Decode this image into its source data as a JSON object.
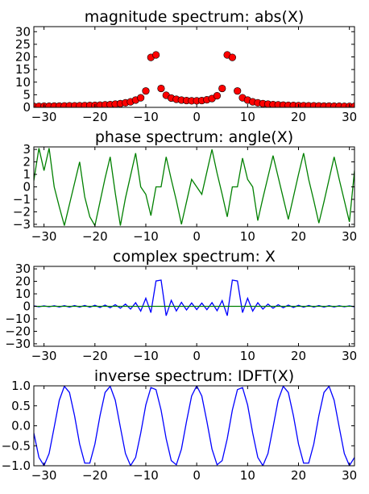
{
  "chart_data": [
    {
      "type": "scatter",
      "title": "magnitude spectrum: abs(X)",
      "xlabel": "",
      "ylabel": "",
      "xlim": [
        -32,
        31
      ],
      "ylim": [
        0,
        32
      ],
      "xticks": [
        -30,
        -20,
        -10,
        0,
        10,
        20,
        30
      ],
      "yticks": [
        0,
        5,
        10,
        15,
        20,
        25,
        30
      ],
      "marker_color": "#ff0000",
      "x": [
        -32,
        -31,
        -30,
        -29,
        -28,
        -27,
        -26,
        -25,
        -24,
        -23,
        -22,
        -21,
        -20,
        -19,
        -18,
        -17,
        -16,
        -15,
        -14,
        -13,
        -12,
        -11,
        -10,
        -9,
        -8,
        -7,
        -6,
        -5,
        -4,
        -3,
        -2,
        -1,
        0,
        1,
        2,
        3,
        4,
        5,
        6,
        7,
        8,
        9,
        10,
        11,
        12,
        13,
        14,
        15,
        16,
        17,
        18,
        19,
        20,
        21,
        22,
        23,
        24,
        25,
        26,
        27,
        28,
        29,
        30,
        31
      ],
      "y": [
        0.4,
        0.4,
        0.45,
        0.45,
        0.5,
        0.5,
        0.55,
        0.6,
        0.6,
        0.65,
        0.7,
        0.75,
        0.8,
        0.9,
        1.0,
        1.1,
        1.3,
        1.5,
        1.8,
        2.2,
        2.9,
        3.8,
        6.5,
        19.8,
        20.8,
        7.5,
        4.8,
        3.7,
        3.2,
        2.9,
        2.7,
        2.6,
        2.6,
        2.7,
        3.0,
        3.5,
        4.6,
        7.5,
        20.8,
        19.8,
        6.5,
        3.8,
        2.9,
        2.2,
        1.8,
        1.5,
        1.3,
        1.1,
        1.0,
        0.9,
        0.8,
        0.75,
        0.7,
        0.65,
        0.6,
        0.6,
        0.55,
        0.5,
        0.5,
        0.45,
        0.45,
        0.4,
        0.4,
        0.4
      ]
    },
    {
      "type": "line",
      "title": "phase spectrum: angle(X)",
      "xlabel": "",
      "ylabel": "",
      "xlim": [
        -32,
        31
      ],
      "ylim": [
        -3.2,
        3.2
      ],
      "xticks": [
        -30,
        -20,
        -10,
        0,
        10,
        20,
        30
      ],
      "yticks": [
        -3,
        -2,
        -1,
        0,
        1,
        2,
        3
      ],
      "line_color": "#008000",
      "x": [
        -32,
        -31,
        -30,
        -29,
        -28,
        -27,
        -26,
        -25,
        -24,
        -23,
        -22,
        -21,
        -20,
        -19,
        -18,
        -17,
        -16,
        -15,
        -14,
        -13,
        -12,
        -11,
        -10,
        -9,
        -8,
        -7,
        -6,
        -5,
        -4,
        -3,
        -2,
        -1,
        0,
        1,
        2,
        3,
        4,
        5,
        6,
        7,
        8,
        9,
        10,
        11,
        12,
        13,
        14,
        15,
        16,
        17,
        18,
        19,
        20,
        21,
        22,
        23,
        24,
        25,
        26,
        27,
        28,
        29,
        30,
        31
      ],
      "y": [
        0.5,
        3.1,
        1.3,
        3.1,
        0.0,
        -1.6,
        -3.1,
        -1.4,
        0.3,
        2.0,
        -0.8,
        -2.4,
        -3.1,
        -1.2,
        0.7,
        2.4,
        -0.5,
        -3.1,
        -0.9,
        0.9,
        2.7,
        0.0,
        -0.6,
        -2.3,
        0.0,
        0.0,
        2.4,
        0.6,
        -1.1,
        -3.0,
        -1.2,
        0.6,
        0.0,
        -0.6,
        1.2,
        3.0,
        1.1,
        -0.6,
        -2.4,
        0.0,
        0.0,
        2.3,
        0.6,
        0.0,
        -2.7,
        -0.9,
        0.8,
        2.5,
        0.8,
        -0.9,
        -2.6,
        -0.8,
        1.0,
        2.7,
        0.6,
        -1.1,
        -2.9,
        -1.2,
        0.6,
        2.4,
        0.6,
        -1.1,
        -2.8,
        1.3
      ]
    },
    {
      "type": "line",
      "title": "complex spectrum: X",
      "xlabel": "",
      "ylabel": "",
      "xlim": [
        -32,
        31
      ],
      "ylim": [
        -32,
        32
      ],
      "xticks": [
        -30,
        -20,
        -10,
        0,
        10,
        20,
        30
      ],
      "yticks": [
        -30,
        -20,
        -10,
        0,
        10,
        20,
        30
      ],
      "series": [
        {
          "color": "#0000ff",
          "x": [
            -32,
            -31,
            -30,
            -29,
            -28,
            -27,
            -26,
            -25,
            -24,
            -23,
            -22,
            -21,
            -20,
            -19,
            -18,
            -17,
            -16,
            -15,
            -14,
            -13,
            -12,
            -11,
            -10,
            -9,
            -8,
            -7,
            -6,
            -5,
            -4,
            -3,
            -2,
            -1,
            0,
            1,
            2,
            3,
            4,
            5,
            6,
            7,
            8,
            9,
            10,
            11,
            12,
            13,
            14,
            15,
            16,
            17,
            18,
            19,
            20,
            21,
            22,
            23,
            24,
            25,
            26,
            27,
            28,
            29,
            30,
            31
          ],
          "values": [
            0.4,
            -0.4,
            0.4,
            -0.4,
            0.5,
            -0.5,
            0.5,
            -0.6,
            0.6,
            -0.6,
            0.7,
            -0.7,
            0.8,
            -0.9,
            1.0,
            -1.1,
            1.3,
            -1.5,
            1.8,
            -2.2,
            2.9,
            -3.8,
            6.5,
            -5.0,
            20.3,
            21.0,
            -7.5,
            4.8,
            -3.7,
            3.2,
            -2.9,
            2.7,
            -2.6,
            2.6,
            -2.7,
            3.0,
            -3.5,
            4.6,
            -7.5,
            21.0,
            20.3,
            -5.0,
            6.5,
            -3.8,
            2.9,
            -2.2,
            1.8,
            -1.5,
            1.3,
            -1.1,
            1.0,
            -0.9,
            0.8,
            -0.7,
            0.7,
            -0.6,
            0.6,
            -0.6,
            0.5,
            -0.5,
            0.5,
            -0.4,
            0.4,
            -0.4
          ]
        },
        {
          "color": "#008000",
          "x": [
            -32,
            -31,
            -30,
            -29,
            -28,
            -27,
            -26,
            -25,
            -24,
            -23,
            -22,
            -21,
            -20,
            -19,
            -18,
            -17,
            -16,
            -15,
            -14,
            -13,
            -12,
            -11,
            -10,
            -9,
            -8,
            -7,
            -6,
            -5,
            -4,
            -3,
            -2,
            -1,
            0,
            1,
            2,
            3,
            4,
            5,
            6,
            7,
            8,
            9,
            10,
            11,
            12,
            13,
            14,
            15,
            16,
            17,
            18,
            19,
            20,
            21,
            22,
            23,
            24,
            25,
            26,
            27,
            28,
            29,
            30,
            31
          ],
          "values": [
            0,
            0,
            0,
            0,
            0,
            0,
            0,
            0,
            0,
            0,
            0,
            0,
            0,
            0,
            0,
            0,
            0,
            0,
            0,
            0,
            0,
            0,
            0,
            0,
            0,
            0,
            0,
            0,
            0,
            0,
            0,
            0,
            0,
            0,
            0,
            0,
            0,
            0,
            0,
            0,
            0,
            0,
            0,
            0,
            0,
            0,
            0,
            0,
            0,
            0,
            0,
            0,
            0,
            0,
            0,
            0,
            0,
            0,
            0,
            0,
            0,
            0,
            0,
            0
          ]
        }
      ]
    },
    {
      "type": "line",
      "title": "inverse spectrum: IDFT(X)",
      "xlabel": "",
      "ylabel": "",
      "xlim": [
        -32,
        31
      ],
      "ylim": [
        -1.0,
        1.0
      ],
      "xticks": [
        -30,
        -20,
        -10,
        0,
        10,
        20,
        30
      ],
      "yticks": [
        -1.0,
        -0.5,
        0.0,
        0.5,
        1.0
      ],
      "yticklabels": [
        "−1.0",
        "−0.5",
        "0.0",
        "0.5",
        "1.0"
      ],
      "line_color": "#0000ff",
      "period": 8.6
    }
  ]
}
